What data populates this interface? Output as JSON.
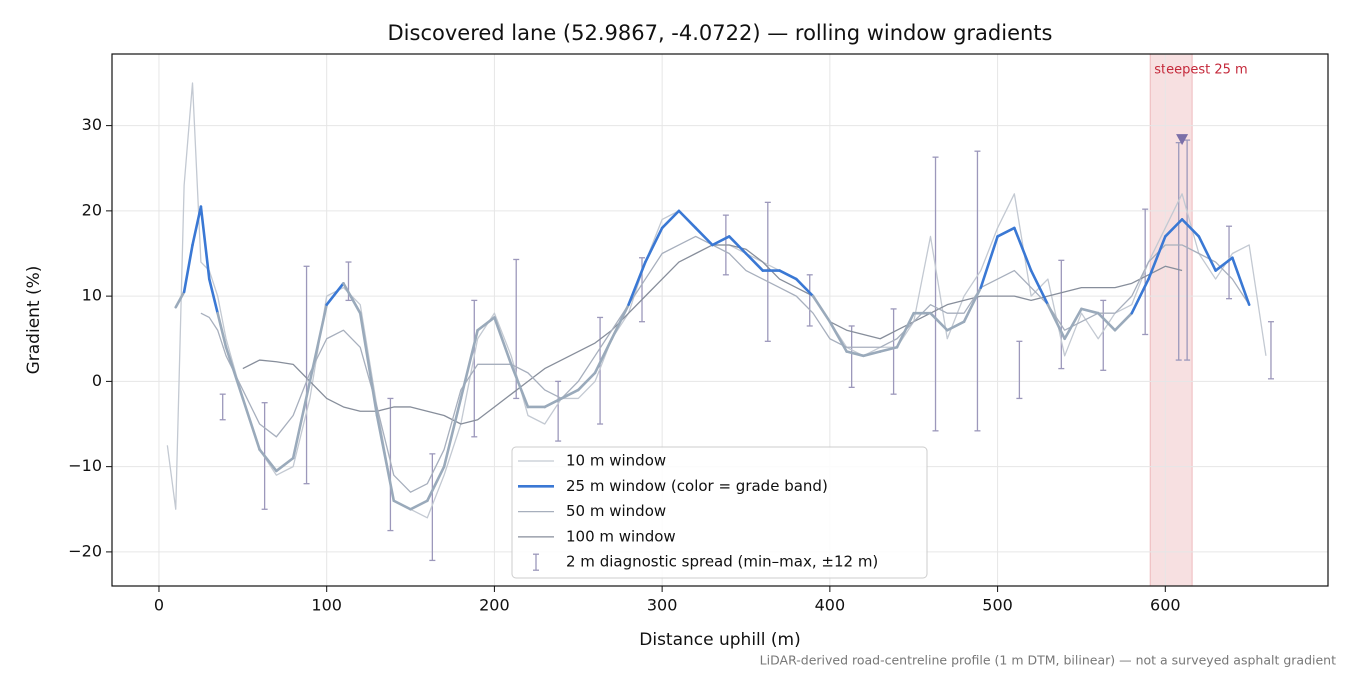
{
  "chart_data": {
    "type": "line",
    "title": "Discovered lane (52.9867, -4.0722) — rolling window gradients",
    "x_label": "Distance uphill (m)",
    "y_label": "Gradient (%)",
    "footnote": "LiDAR-derived road-centreline profile (1 m DTM, bilinear) — not a surveyed asphalt gradient",
    "xlim": [
      -28,
      697
    ],
    "ylim": [
      -24,
      38.4
    ],
    "xticks": [
      0,
      100,
      200,
      300,
      400,
      500,
      600
    ],
    "yticks": [
      {
        "value": -20,
        "label": "−20"
      },
      {
        "value": -10,
        "label": "−10"
      },
      0,
      10,
      20,
      30
    ],
    "grid": true,
    "legend_position": "lower center",
    "x": [
      0,
      5,
      10,
      15,
      20,
      25,
      30,
      35,
      40,
      50,
      60,
      70,
      80,
      90,
      100,
      110,
      120,
      130,
      140,
      150,
      160,
      170,
      180,
      190,
      200,
      210,
      220,
      230,
      240,
      250,
      260,
      270,
      280,
      290,
      300,
      310,
      320,
      330,
      340,
      350,
      360,
      370,
      380,
      390,
      400,
      410,
      420,
      430,
      440,
      450,
      460,
      470,
      480,
      490,
      500,
      510,
      520,
      530,
      540,
      550,
      560,
      570,
      580,
      590,
      600,
      610,
      620,
      630,
      640,
      650,
      660,
      670
    ],
    "series": [
      {
        "name": "10 m window",
        "color": "#c3c9d2",
        "width": 1.3,
        "values": [
          null,
          -7.5,
          -15,
          23,
          35,
          14,
          13,
          10,
          5,
          -2,
          -8,
          -11,
          -10,
          -2,
          10,
          11,
          9,
          -3,
          -14,
          -15,
          -16,
          -11,
          -5,
          5,
          8,
          3,
          -4,
          -5,
          -2,
          -2,
          0,
          5,
          8,
          14,
          19,
          20,
          18,
          16,
          16,
          15,
          14,
          13,
          12,
          10,
          7,
          4,
          3,
          4,
          4,
          7,
          17,
          5,
          10,
          13,
          18,
          22,
          10,
          12,
          3,
          8,
          5,
          8,
          9,
          14,
          18,
          22,
          15,
          12,
          15,
          16,
          3,
          null
        ]
      },
      {
        "name": "25 m window (color = grade band)",
        "color": "#3a78d4",
        "width": 2.6,
        "band_base_color": "#9aaabb",
        "grade_bands": [
          {
            "min": 10,
            "color": "#3a78d4"
          },
          {
            "min": 20,
            "color": "#e8a020"
          }
        ],
        "values": [
          null,
          null,
          8.7,
          10.5,
          16,
          20.5,
          12,
          8,
          4,
          -2,
          -8,
          -10.5,
          -9,
          0,
          9,
          11.5,
          8,
          -4,
          -14,
          -15,
          -14,
          -10,
          -2,
          6,
          7.5,
          2,
          -3,
          -3,
          -2,
          -1,
          1,
          5,
          9,
          14,
          18,
          20,
          18,
          16,
          17,
          15,
          13,
          13,
          12,
          10,
          7,
          3.5,
          3,
          3.5,
          4,
          8,
          8,
          6,
          7,
          11,
          17,
          18,
          13,
          9,
          5,
          8.5,
          8,
          6,
          8,
          12,
          17,
          19,
          17,
          13,
          14.5,
          9,
          null,
          null
        ]
      },
      {
        "name": "50 m window",
        "color": "#a7afbd",
        "width": 1.3,
        "values": [
          null,
          null,
          null,
          null,
          null,
          8,
          7.5,
          6,
          3,
          -1,
          -5,
          -6.5,
          -4,
          1,
          5,
          6,
          4,
          -3,
          -11,
          -13,
          -12,
          -8,
          -1,
          2,
          2,
          2,
          1,
          -1,
          -2,
          0,
          3,
          6,
          9,
          12,
          15,
          16,
          17,
          16,
          15,
          13,
          12,
          11,
          10,
          8,
          5,
          4,
          4,
          4,
          5,
          7,
          9,
          8,
          8,
          11,
          12,
          13,
          11,
          9,
          6,
          7,
          8,
          8,
          10,
          14,
          16,
          16,
          15,
          14,
          12,
          9,
          null,
          null
        ]
      },
      {
        "name": "100 m window",
        "color": "#878e9b",
        "width": 1.3,
        "values": [
          null,
          null,
          null,
          null,
          null,
          null,
          null,
          null,
          null,
          1.5,
          2.5,
          2.3,
          2,
          0,
          -2,
          -3,
          -3.5,
          -3.5,
          -3,
          -3,
          -3.5,
          -4,
          -5,
          -4.5,
          -3,
          -1.5,
          0,
          1.5,
          2.5,
          3.5,
          4.5,
          6,
          8,
          10,
          12,
          14,
          15,
          16,
          16,
          15.5,
          14,
          12,
          11,
          10,
          7,
          6,
          5.5,
          5,
          6,
          7,
          8,
          9,
          9.5,
          10,
          10,
          10,
          9.5,
          10,
          10.5,
          11,
          11,
          11,
          11.5,
          12.5,
          13.5,
          13,
          null,
          null,
          null,
          null,
          null,
          null
        ]
      }
    ],
    "error_bars": {
      "name": "2 m diagnostic spread (min–max, ±12 m)",
      "color": "#9c98bb",
      "x": [
        38,
        63,
        88,
        113,
        138,
        163,
        188,
        213,
        238,
        263,
        288,
        338,
        363,
        388,
        413,
        438,
        463,
        488,
        513,
        538,
        563,
        588,
        608,
        613,
        638,
        663
      ],
      "low": [
        -4.5,
        -15,
        -12,
        9.5,
        -17.5,
        -21,
        -6.5,
        -2,
        -7,
        -5,
        7,
        12.5,
        4.7,
        6.5,
        -0.7,
        -1.5,
        -5.8,
        -5.8,
        -2,
        1.5,
        1.3,
        5.5,
        2.5,
        2.5,
        9.7,
        0.3
      ],
      "high": [
        -1.5,
        -2.5,
        13.5,
        14,
        -2,
        -8.5,
        9.5,
        14.3,
        0,
        7.5,
        14.5,
        19.5,
        21,
        12.5,
        6.5,
        8.5,
        26.3,
        27,
        4.7,
        14.2,
        9.5,
        20.2,
        28,
        28.3,
        18.2,
        7
      ]
    },
    "highlight": {
      "xmin": 591,
      "xmax": 616,
      "label": "steepest 25 m",
      "color": "#e8a5a8",
      "label_color": "#c4283a"
    },
    "marker": {
      "x": 610,
      "y": 28.3,
      "color": "#7b6fa8"
    }
  }
}
